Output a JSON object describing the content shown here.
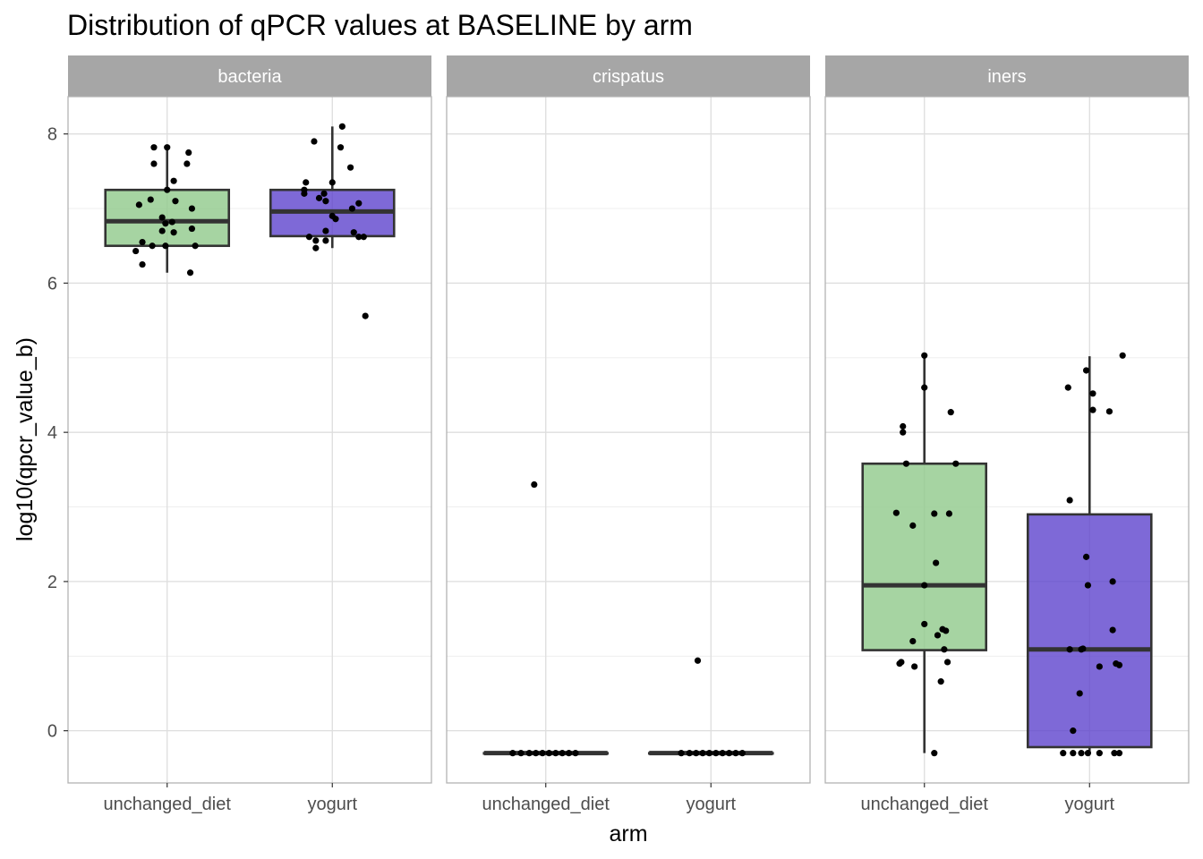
{
  "chart_data": {
    "type": "box",
    "title": "Distribution of qPCR values at BASELINE by arm",
    "xlabel": "arm",
    "ylabel": "log10(qpcr_value_b)",
    "ylim": [
      -0.7,
      8.5
    ],
    "yticks": [
      0,
      2,
      4,
      6,
      8
    ],
    "ytick_labels": [
      "0",
      "2",
      "4",
      "6",
      "8"
    ],
    "grid": true,
    "categories": [
      "unchanged_diet",
      "yogurt"
    ],
    "colors": {
      "unchanged_diet": "#93cb8e",
      "yogurt": "#5a3fcc",
      "strip": "#a6a6a6",
      "box_line": "#333333",
      "point": "#000000",
      "grid": "#dedede",
      "panel_border": "#b3b3b3"
    },
    "panels": [
      {
        "name": "bacteria",
        "boxes": [
          {
            "arm": "unchanged_diet",
            "q1": 6.5,
            "median": 6.83,
            "q3": 7.25,
            "whisker_low": 6.14,
            "whisker_high": 7.82
          },
          {
            "arm": "yogurt",
            "q1": 6.63,
            "median": 6.96,
            "q3": 7.25,
            "whisker_low": 6.47,
            "whisker_high": 8.1
          }
        ],
        "points": [
          {
            "arm": "unchanged_diet",
            "x": 0.92,
            "y": 7.82
          },
          {
            "arm": "unchanged_diet",
            "x": 1.0,
            "y": 7.82
          },
          {
            "arm": "unchanged_diet",
            "x": 1.13,
            "y": 7.75
          },
          {
            "arm": "unchanged_diet",
            "x": 0.92,
            "y": 7.6
          },
          {
            "arm": "unchanged_diet",
            "x": 1.12,
            "y": 7.6
          },
          {
            "arm": "unchanged_diet",
            "x": 1.04,
            "y": 7.37
          },
          {
            "arm": "unchanged_diet",
            "x": 1.0,
            "y": 7.25
          },
          {
            "arm": "unchanged_diet",
            "x": 0.9,
            "y": 7.12
          },
          {
            "arm": "unchanged_diet",
            "x": 1.05,
            "y": 7.1
          },
          {
            "arm": "unchanged_diet",
            "x": 0.83,
            "y": 7.05
          },
          {
            "arm": "unchanged_diet",
            "x": 1.15,
            "y": 7.0
          },
          {
            "arm": "unchanged_diet",
            "x": 0.97,
            "y": 6.88
          },
          {
            "arm": "unchanged_diet",
            "x": 1.03,
            "y": 6.82
          },
          {
            "arm": "unchanged_diet",
            "x": 0.99,
            "y": 6.8
          },
          {
            "arm": "unchanged_diet",
            "x": 1.15,
            "y": 6.73
          },
          {
            "arm": "unchanged_diet",
            "x": 0.97,
            "y": 6.7
          },
          {
            "arm": "unchanged_diet",
            "x": 1.04,
            "y": 6.68
          },
          {
            "arm": "unchanged_diet",
            "x": 0.85,
            "y": 6.55
          },
          {
            "arm": "unchanged_diet",
            "x": 0.91,
            "y": 6.5
          },
          {
            "arm": "unchanged_diet",
            "x": 0.99,
            "y": 6.5
          },
          {
            "arm": "unchanged_diet",
            "x": 1.17,
            "y": 6.5
          },
          {
            "arm": "unchanged_diet",
            "x": 0.81,
            "y": 6.43
          },
          {
            "arm": "unchanged_diet",
            "x": 0.85,
            "y": 6.25
          },
          {
            "arm": "unchanged_diet",
            "x": 1.14,
            "y": 6.14
          },
          {
            "arm": "yogurt",
            "x": 2.06,
            "y": 8.1
          },
          {
            "arm": "yogurt",
            "x": 1.89,
            "y": 7.9
          },
          {
            "arm": "yogurt",
            "x": 2.05,
            "y": 7.82
          },
          {
            "arm": "yogurt",
            "x": 2.11,
            "y": 7.55
          },
          {
            "arm": "yogurt",
            "x": 1.84,
            "y": 7.35
          },
          {
            "arm": "yogurt",
            "x": 2.0,
            "y": 7.35
          },
          {
            "arm": "yogurt",
            "x": 1.83,
            "y": 7.25
          },
          {
            "arm": "yogurt",
            "x": 1.83,
            "y": 7.2
          },
          {
            "arm": "yogurt",
            "x": 1.95,
            "y": 7.2
          },
          {
            "arm": "yogurt",
            "x": 1.92,
            "y": 7.14
          },
          {
            "arm": "yogurt",
            "x": 1.96,
            "y": 7.1
          },
          {
            "arm": "yogurt",
            "x": 2.16,
            "y": 7.07
          },
          {
            "arm": "yogurt",
            "x": 2.12,
            "y": 7.0
          },
          {
            "arm": "yogurt",
            "x": 2.0,
            "y": 6.9
          },
          {
            "arm": "yogurt",
            "x": 2.02,
            "y": 6.86
          },
          {
            "arm": "yogurt",
            "x": 1.96,
            "y": 6.7
          },
          {
            "arm": "yogurt",
            "x": 2.13,
            "y": 6.68
          },
          {
            "arm": "yogurt",
            "x": 1.86,
            "y": 6.62
          },
          {
            "arm": "yogurt",
            "x": 2.16,
            "y": 6.62
          },
          {
            "arm": "yogurt",
            "x": 2.19,
            "y": 6.62
          },
          {
            "arm": "yogurt",
            "x": 1.9,
            "y": 6.57
          },
          {
            "arm": "yogurt",
            "x": 1.96,
            "y": 6.57
          },
          {
            "arm": "yogurt",
            "x": 1.9,
            "y": 6.47
          },
          {
            "arm": "yogurt",
            "x": 2.2,
            "y": 5.56
          }
        ]
      },
      {
        "name": "crispatus",
        "boxes": [
          {
            "arm": "unchanged_diet",
            "q1": -0.3,
            "median": -0.3,
            "q3": -0.3,
            "whisker_low": -0.3,
            "whisker_high": -0.3
          },
          {
            "arm": "yogurt",
            "q1": -0.3,
            "median": -0.3,
            "q3": -0.3,
            "whisker_low": -0.3,
            "whisker_high": -0.3
          }
        ],
        "points": [
          {
            "arm": "unchanged_diet",
            "x": 0.93,
            "y": 3.3
          },
          {
            "arm": "unchanged_diet",
            "x": 0.8,
            "y": -0.3
          },
          {
            "arm": "unchanged_diet",
            "x": 0.85,
            "y": -0.3
          },
          {
            "arm": "unchanged_diet",
            "x": 0.9,
            "y": -0.3
          },
          {
            "arm": "unchanged_diet",
            "x": 0.94,
            "y": -0.3
          },
          {
            "arm": "unchanged_diet",
            "x": 0.98,
            "y": -0.3
          },
          {
            "arm": "unchanged_diet",
            "x": 1.02,
            "y": -0.3
          },
          {
            "arm": "unchanged_diet",
            "x": 1.06,
            "y": -0.3
          },
          {
            "arm": "unchanged_diet",
            "x": 1.1,
            "y": -0.3
          },
          {
            "arm": "unchanged_diet",
            "x": 1.14,
            "y": -0.3
          },
          {
            "arm": "unchanged_diet",
            "x": 1.18,
            "y": -0.3
          },
          {
            "arm": "yogurt",
            "x": 1.92,
            "y": 0.94
          },
          {
            "arm": "yogurt",
            "x": 1.82,
            "y": -0.3
          },
          {
            "arm": "yogurt",
            "x": 1.87,
            "y": -0.3
          },
          {
            "arm": "yogurt",
            "x": 1.91,
            "y": -0.3
          },
          {
            "arm": "yogurt",
            "x": 1.95,
            "y": -0.3
          },
          {
            "arm": "yogurt",
            "x": 1.99,
            "y": -0.3
          },
          {
            "arm": "yogurt",
            "x": 2.03,
            "y": -0.3
          },
          {
            "arm": "yogurt",
            "x": 2.07,
            "y": -0.3
          },
          {
            "arm": "yogurt",
            "x": 2.11,
            "y": -0.3
          },
          {
            "arm": "yogurt",
            "x": 2.15,
            "y": -0.3
          },
          {
            "arm": "yogurt",
            "x": 2.19,
            "y": -0.3
          }
        ]
      },
      {
        "name": "iners",
        "boxes": [
          {
            "arm": "unchanged_diet",
            "q1": 1.08,
            "median": 1.95,
            "q3": 3.58,
            "whisker_low": -0.3,
            "whisker_high": 5.02
          },
          {
            "arm": "yogurt",
            "q1": -0.22,
            "median": 1.09,
            "q3": 2.9,
            "whisker_low": -0.3,
            "whisker_high": 5.02
          }
        ],
        "points": [
          {
            "arm": "unchanged_diet",
            "x": 1.0,
            "y": 5.03
          },
          {
            "arm": "unchanged_diet",
            "x": 1.0,
            "y": 4.6
          },
          {
            "arm": "unchanged_diet",
            "x": 1.16,
            "y": 4.27
          },
          {
            "arm": "unchanged_diet",
            "x": 0.87,
            "y": 4.08
          },
          {
            "arm": "unchanged_diet",
            "x": 0.87,
            "y": 4.0
          },
          {
            "arm": "unchanged_diet",
            "x": 0.89,
            "y": 3.58
          },
          {
            "arm": "unchanged_diet",
            "x": 1.19,
            "y": 3.58
          },
          {
            "arm": "unchanged_diet",
            "x": 0.83,
            "y": 2.92
          },
          {
            "arm": "unchanged_diet",
            "x": 1.06,
            "y": 2.91
          },
          {
            "arm": "unchanged_diet",
            "x": 1.15,
            "y": 2.91
          },
          {
            "arm": "unchanged_diet",
            "x": 0.93,
            "y": 2.75
          },
          {
            "arm": "unchanged_diet",
            "x": 1.07,
            "y": 2.25
          },
          {
            "arm": "unchanged_diet",
            "x": 1.0,
            "y": 1.95
          },
          {
            "arm": "unchanged_diet",
            "x": 1.0,
            "y": 1.43
          },
          {
            "arm": "unchanged_diet",
            "x": 1.11,
            "y": 1.36
          },
          {
            "arm": "unchanged_diet",
            "x": 1.13,
            "y": 1.34
          },
          {
            "arm": "unchanged_diet",
            "x": 1.08,
            "y": 1.28
          },
          {
            "arm": "unchanged_diet",
            "x": 0.93,
            "y": 1.2
          },
          {
            "arm": "unchanged_diet",
            "x": 1.12,
            "y": 1.09
          },
          {
            "arm": "unchanged_diet",
            "x": 0.86,
            "y": 0.92
          },
          {
            "arm": "unchanged_diet",
            "x": 1.14,
            "y": 0.92
          },
          {
            "arm": "unchanged_diet",
            "x": 0.85,
            "y": 0.9
          },
          {
            "arm": "unchanged_diet",
            "x": 0.94,
            "y": 0.86
          },
          {
            "arm": "unchanged_diet",
            "x": 1.1,
            "y": 0.66
          },
          {
            "arm": "unchanged_diet",
            "x": 1.06,
            "y": -0.3
          },
          {
            "arm": "yogurt",
            "x": 2.2,
            "y": 5.03
          },
          {
            "arm": "yogurt",
            "x": 1.98,
            "y": 4.83
          },
          {
            "arm": "yogurt",
            "x": 1.87,
            "y": 4.6
          },
          {
            "arm": "yogurt",
            "x": 2.02,
            "y": 4.52
          },
          {
            "arm": "yogurt",
            "x": 2.02,
            "y": 4.3
          },
          {
            "arm": "yogurt",
            "x": 2.12,
            "y": 4.28
          },
          {
            "arm": "yogurt",
            "x": 1.88,
            "y": 3.09
          },
          {
            "arm": "yogurt",
            "x": 1.98,
            "y": 2.33
          },
          {
            "arm": "yogurt",
            "x": 2.14,
            "y": 2.0
          },
          {
            "arm": "yogurt",
            "x": 1.99,
            "y": 1.95
          },
          {
            "arm": "yogurt",
            "x": 2.14,
            "y": 1.35
          },
          {
            "arm": "yogurt",
            "x": 1.88,
            "y": 1.09
          },
          {
            "arm": "yogurt",
            "x": 1.95,
            "y": 1.09
          },
          {
            "arm": "yogurt",
            "x": 1.96,
            "y": 1.1
          },
          {
            "arm": "yogurt",
            "x": 2.16,
            "y": 0.9
          },
          {
            "arm": "yogurt",
            "x": 2.18,
            "y": 0.88
          },
          {
            "arm": "yogurt",
            "x": 2.06,
            "y": 0.86
          },
          {
            "arm": "yogurt",
            "x": 1.94,
            "y": 0.5
          },
          {
            "arm": "yogurt",
            "x": 1.9,
            "y": 0.0
          },
          {
            "arm": "yogurt",
            "x": 1.84,
            "y": -0.3
          },
          {
            "arm": "yogurt",
            "x": 1.9,
            "y": -0.3
          },
          {
            "arm": "yogurt",
            "x": 1.95,
            "y": -0.3
          },
          {
            "arm": "yogurt",
            "x": 1.99,
            "y": -0.3
          },
          {
            "arm": "yogurt",
            "x": 2.06,
            "y": -0.3
          },
          {
            "arm": "yogurt",
            "x": 2.15,
            "y": -0.3
          },
          {
            "arm": "yogurt",
            "x": 2.18,
            "y": -0.3
          }
        ]
      }
    ]
  }
}
